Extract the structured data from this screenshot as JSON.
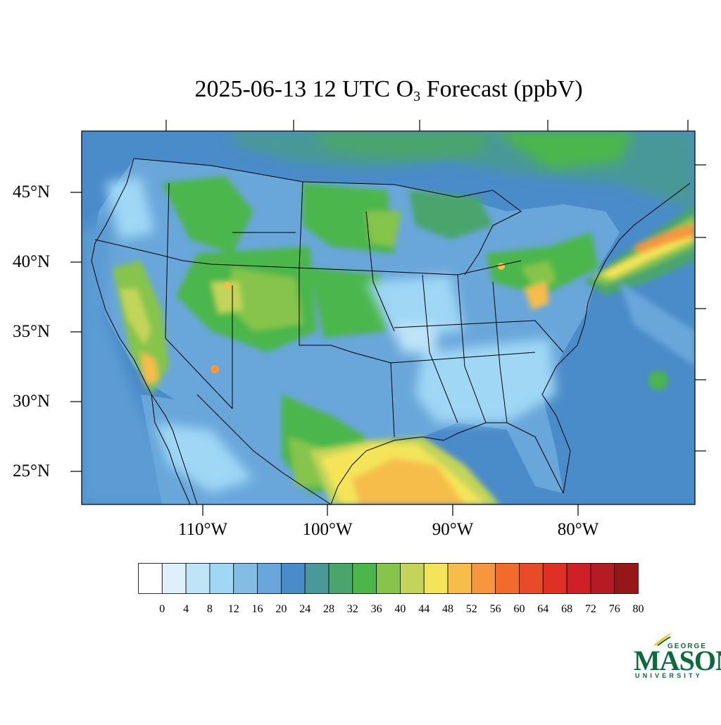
{
  "title": {
    "prefix": "2025-06-13 12 UTC O",
    "subscript": "3",
    "suffix": " Forecast (ppbV)"
  },
  "latitude_labels": [
    "45°N",
    "40°N",
    "35°N",
    "30°N",
    "25°N"
  ],
  "longitude_labels": [
    "110°W",
    "100°W",
    "90°W",
    "80°W"
  ],
  "colorbar": {
    "labels": [
      "0",
      "4",
      "8",
      "12",
      "16",
      "20",
      "24",
      "28",
      "32",
      "36",
      "40",
      "44",
      "48",
      "52",
      "56",
      "60",
      "64",
      "68",
      "72",
      "76",
      "80"
    ],
    "colors": [
      "#ffffff",
      "#dff0fa",
      "#bfe4f8",
      "#9fd7f5",
      "#84bde4",
      "#69a6da",
      "#4a8bc9",
      "#4a9898",
      "#49a56c",
      "#4cb64b",
      "#86c44b",
      "#c2d55a",
      "#f4e45a",
      "#f7bd4b",
      "#f6963e",
      "#f26b2c",
      "#e94b29",
      "#df3026",
      "#cf2027",
      "#b41b22",
      "#971719"
    ]
  },
  "map": {
    "ocean_color": "#4a8bc9",
    "land_base_color": "#69a6da"
  },
  "logo": {
    "line1": "GEORGE",
    "line2": "MASON",
    "line3": "UNIVERSITY",
    "color": "#0d6b3b",
    "accent": "#f2c318"
  }
}
